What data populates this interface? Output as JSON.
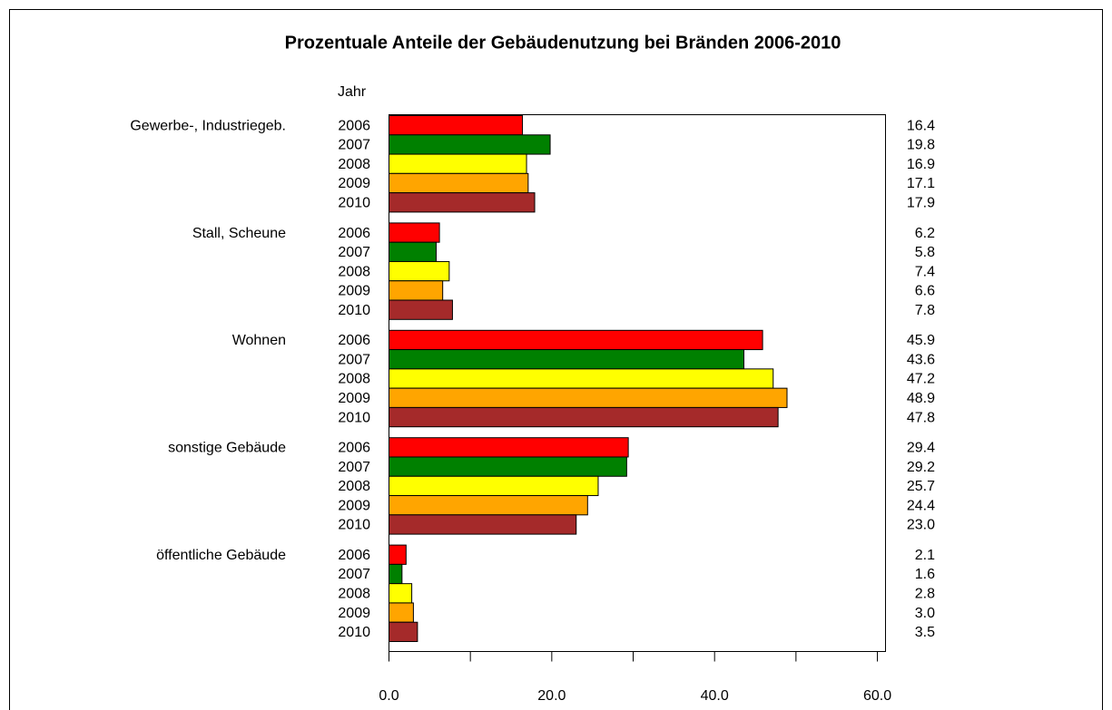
{
  "chart_data": {
    "type": "hbar",
    "title": "Prozentuale Anteile der Gebäudenutzung bei Bränden 2006-2010",
    "legend_title": "Jahr",
    "categories": [
      "Gewerbe-, Industriegeb.",
      "Stall, Scheune",
      "Wohnen",
      "sonstige Gebäude",
      "öffentliche Gebäude"
    ],
    "series": [
      {
        "name": "2006",
        "color": "#ff0000",
        "values": [
          16.4,
          6.2,
          45.9,
          29.4,
          2.1
        ],
        "value_labels": [
          "16.4",
          "6.2",
          "45.9",
          "29.4",
          "2.1"
        ]
      },
      {
        "name": "2007",
        "color": "#008000",
        "values": [
          19.8,
          5.8,
          43.6,
          29.2,
          1.6
        ],
        "value_labels": [
          "19.8",
          "5.8",
          "43.6",
          "29.2",
          "1.6"
        ]
      },
      {
        "name": "2008",
        "color": "#ffff00",
        "values": [
          16.9,
          7.4,
          47.2,
          25.7,
          2.8
        ],
        "value_labels": [
          "16.9",
          "7.4",
          "47.2",
          "25.7",
          "2.8"
        ]
      },
      {
        "name": "2009",
        "color": "#ffa500",
        "values": [
          17.1,
          6.6,
          48.9,
          24.4,
          3.0
        ],
        "value_labels": [
          "17.1",
          "6.6",
          "48.9",
          "24.4",
          "3.0"
        ]
      },
      {
        "name": "2010",
        "color": "#a52a2a",
        "values": [
          17.9,
          7.8,
          47.8,
          23.0,
          3.5
        ],
        "value_labels": [
          "17.9",
          "7.8",
          "47.8",
          "23.0",
          "3.5"
        ]
      }
    ],
    "xlim": [
      0,
      61
    ],
    "xticks": [
      {
        "value": 0,
        "label": "0.0"
      },
      {
        "value": 20,
        "label": "20.0"
      },
      {
        "value": 40,
        "label": "40.0"
      },
      {
        "value": 60,
        "label": "60.0"
      }
    ],
    "minor_xticks": [
      10,
      30,
      50
    ],
    "grid": false
  }
}
